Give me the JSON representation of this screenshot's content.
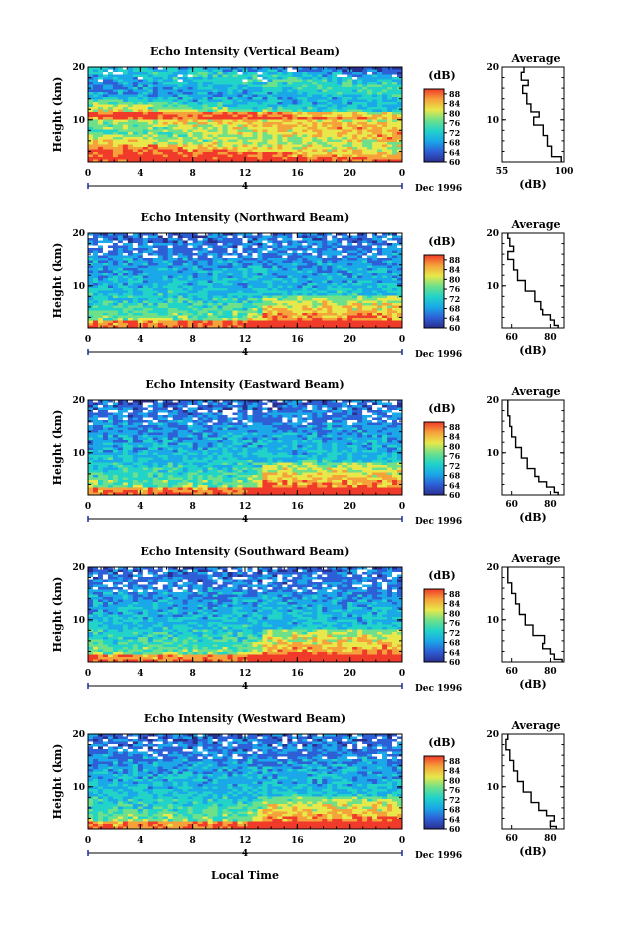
{
  "chart_data": {
    "type": "heatmap",
    "figure_xlabel": "Local Time",
    "date_label": "Dec 1996",
    "colorbar_unit": "(dB)",
    "colorbar_ticks": [
      "88",
      "84",
      "80",
      "76",
      "72",
      "68",
      "64",
      "60"
    ],
    "colorbar_range": [
      60,
      90
    ],
    "colors": [
      "#2a2f8f",
      "#2d5fd6",
      "#1aa8e8",
      "#22d3c8",
      "#6ee08a",
      "#e8e84a",
      "#f5a23a",
      "#f03a2a"
    ],
    "profile_title": "Average",
    "profile_xlabel": "(dB)",
    "panels": [
      {
        "title": "Echo Intensity (Vertical Beam)",
        "ylabel": "Height (km)",
        "yticks": [
          "20",
          "10"
        ],
        "xticks": [
          "0",
          "4",
          "8",
          "12",
          "16",
          "20",
          "0"
        ],
        "day_label": "4",
        "xlim": [
          0,
          24
        ],
        "ylim": [
          2,
          20
        ],
        "mean_profile": {
          "height_km": [
            2,
            4,
            6,
            8,
            10,
            11,
            12,
            14,
            16,
            17,
            18,
            20
          ],
          "db": [
            98,
            91,
            88,
            85,
            78,
            82,
            76,
            73,
            70,
            74,
            69,
            71
          ]
        },
        "profile_xticks": [
          "55",
          "100"
        ],
        "profile_xlim": [
          55,
          100
        ]
      },
      {
        "title": "Echo Intensity (Northward Beam)",
        "ylabel": "Height (km)",
        "yticks": [
          "20",
          "10"
        ],
        "xticks": [
          "0",
          "4",
          "8",
          "12",
          "16",
          "20",
          "0"
        ],
        "day_label": "4",
        "xlim": [
          0,
          24
        ],
        "ylim": [
          2,
          20
        ],
        "mean_profile": {
          "height_km": [
            2,
            3,
            4,
            5,
            6,
            8,
            10,
            12,
            14,
            16,
            17,
            18,
            20
          ],
          "db": [
            84,
            82,
            80,
            76,
            75,
            72,
            67,
            63,
            61,
            58,
            61,
            59,
            58
          ]
        },
        "profile_xticks": [
          "60",
          "80"
        ],
        "profile_xlim": [
          55,
          87
        ]
      },
      {
        "title": "Echo Intensity (Eastward Beam)",
        "ylabel": "Height (km)",
        "yticks": [
          "20",
          "10"
        ],
        "xticks": [
          "0",
          "4",
          "8",
          "12",
          "16",
          "20",
          "0"
        ],
        "day_label": "4",
        "xlim": [
          0,
          24
        ],
        "ylim": [
          2,
          20
        ],
        "mean_profile": {
          "height_km": [
            2,
            3,
            4,
            5,
            6,
            8,
            10,
            12,
            14,
            16,
            18,
            20
          ],
          "db": [
            84,
            82,
            78,
            74,
            72,
            68,
            65,
            62,
            60,
            59,
            58,
            58
          ]
        },
        "profile_xticks": [
          "60",
          "80"
        ],
        "profile_xlim": [
          55,
          87
        ]
      },
      {
        "title": "Echo Intensity (Southward Beam)",
        "ylabel": "Height (km)",
        "yticks": [
          "20",
          "10"
        ],
        "xticks": [
          "0",
          "4",
          "8",
          "12",
          "16",
          "20",
          "0"
        ],
        "day_label": "4",
        "xlim": [
          0,
          24
        ],
        "ylim": [
          2,
          20
        ],
        "mean_profile": {
          "height_km": [
            2,
            3,
            4,
            5,
            6,
            8,
            10,
            12,
            14,
            16,
            18,
            20
          ],
          "db": [
            86,
            82,
            80,
            76,
            77,
            71,
            67,
            64,
            62,
            60,
            58,
            58
          ]
        },
        "profile_xticks": [
          "60",
          "80"
        ],
        "profile_xlim": [
          55,
          87
        ]
      },
      {
        "title": "Echo Intensity (Westward Beam)",
        "ylabel": "Height (km)",
        "yticks": [
          "20",
          "10"
        ],
        "xticks": [
          "0",
          "4",
          "8",
          "12",
          "16",
          "20",
          "0"
        ],
        "day_label": "4",
        "xlim": [
          0,
          24
        ],
        "ylim": [
          2,
          20
        ],
        "mean_profile": {
          "height_km": [
            2,
            3,
            4,
            5,
            6,
            8,
            10,
            12,
            14,
            16,
            18,
            20
          ],
          "db": [
            83,
            80,
            82,
            78,
            74,
            70,
            66,
            63,
            61,
            59,
            57,
            58
          ]
        },
        "profile_xticks": [
          "60",
          "80"
        ],
        "profile_xlim": [
          55,
          87
        ]
      }
    ]
  }
}
